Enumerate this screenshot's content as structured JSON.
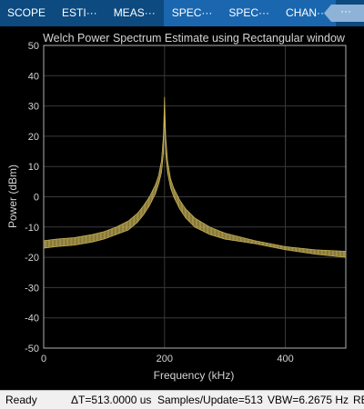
{
  "tabs": [
    {
      "label": "SCOPE",
      "active": false
    },
    {
      "label": "ESTI···",
      "active": false
    },
    {
      "label": "MEAS···",
      "active": false
    },
    {
      "label": "SPEC···",
      "active": true
    },
    {
      "label": "SPEC···",
      "active": true
    },
    {
      "label": "CHAN···",
      "active": true
    }
  ],
  "overflow": {
    "icon": "more-options-icon",
    "label": "···"
  },
  "colors": {
    "tabbar": "#0c4a80",
    "tab_active": "#1a67b0",
    "trace": "#c9b458",
    "grid": "#3a3a3a",
    "text": "#d4d4d4",
    "axis_box": "#b0b0b0"
  },
  "chart_data": {
    "type": "line",
    "title": "Welch Power Spectrum Estimate using Rectangular window",
    "xlabel": "Frequency (kHz)",
    "ylabel": "Power (dBm)",
    "xlim": [
      0,
      500
    ],
    "ylim": [
      -50,
      50
    ],
    "xticks": [
      0,
      200,
      400
    ],
    "yticks": [
      -50,
      -40,
      -30,
      -20,
      -10,
      0,
      10,
      20,
      30,
      40,
      50
    ],
    "grid": true,
    "series": [
      {
        "x": [
          0,
          20,
          50,
          80,
          100,
          120,
          140,
          155,
          165,
          175,
          185,
          190,
          195,
          198,
          200,
          202,
          205,
          210,
          215,
          225,
          235,
          250,
          275,
          300,
          350,
          400,
          450,
          500
        ],
        "upper": [
          -14.5,
          -14,
          -13.5,
          -12.5,
          -11.5,
          -10,
          -8,
          -5.5,
          -3,
          0,
          4,
          7,
          12,
          20,
          33,
          20,
          12,
          6,
          3,
          -1,
          -4,
          -7,
          -10,
          -12,
          -14.5,
          -16.5,
          -17.5,
          -18
        ],
        "lower": [
          -17,
          -16.5,
          -16,
          -15,
          -14,
          -12.5,
          -11,
          -8.5,
          -6,
          -3,
          1,
          4,
          8,
          14,
          27,
          14,
          8,
          3,
          0,
          -4,
          -7,
          -10,
          -12.5,
          -14,
          -15.5,
          -17.5,
          -19,
          -20
        ]
      }
    ]
  },
  "status": {
    "state": "Ready",
    "delta_t": "ΔT=513.0000 us",
    "samples": "Samples/Update=513",
    "vbw": "VBW=6.2675 Hz",
    "trailing": "RE"
  }
}
